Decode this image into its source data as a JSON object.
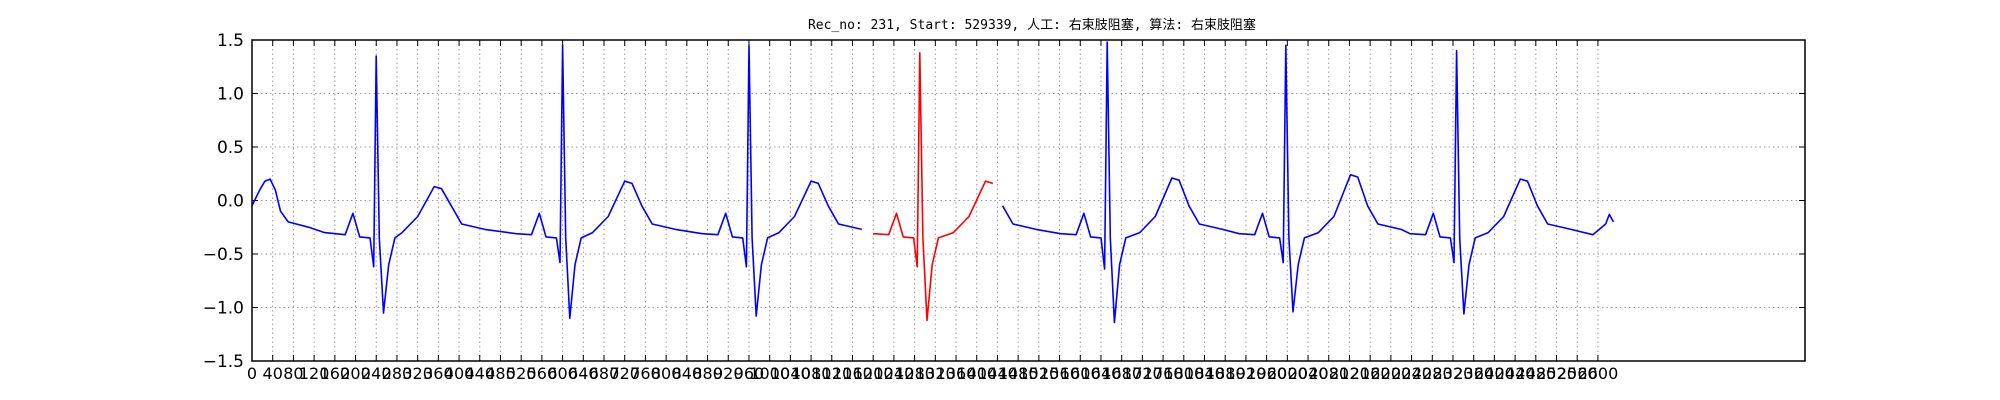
{
  "chart_data": {
    "type": "line",
    "title": "Rec_no: 231, Start: 529339, 人工: 右束肢阻塞, 算法: 右束肢阻塞",
    "xlabel": "",
    "ylabel": "",
    "xlim": [
      0,
      3000
    ],
    "ylim": [
      -1.5,
      1.5
    ],
    "grid": true,
    "legend": "none",
    "colors": {
      "signal": "#0000ff",
      "highlight": "#ff0000",
      "axis": "#000000",
      "grid": "#999999"
    },
    "y_ticks": [
      "−1.5",
      "−1.0",
      "−0.5",
      "0.0",
      "0.5",
      "1.0",
      "1.5"
    ],
    "y_tick_values": [
      -1.5,
      -1.0,
      -0.5,
      0.0,
      0.5,
      1.0,
      1.5
    ],
    "x_ticks": [
      "0",
      "40",
      "80",
      "120",
      "160",
      "200",
      "240",
      "280",
      "320",
      "360",
      "400",
      "440",
      "480",
      "520",
      "560",
      "600",
      "640",
      "680",
      "720",
      "760",
      "800",
      "840",
      "880",
      "920",
      "960",
      "1000",
      "1040",
      "1080",
      "1120",
      "1160",
      "1200",
      "1240",
      "1280",
      "1320",
      "1360",
      "1400",
      "1440",
      "1480",
      "1520",
      "1560",
      "1600",
      "1640",
      "1680",
      "1720",
      "1760",
      "1800",
      "1840",
      "1880",
      "1920",
      "1960",
      "2000",
      "2040",
      "2080",
      "2120",
      "2160",
      "2200",
      "2240",
      "2280",
      "2320",
      "2360",
      "2400",
      "2440",
      "2480",
      "2520",
      "2560",
      "2600"
    ],
    "x_tick_values": [
      0,
      40,
      80,
      120,
      160,
      200,
      240,
      280,
      320,
      360,
      400,
      440,
      480,
      520,
      560,
      600,
      640,
      680,
      720,
      760,
      800,
      840,
      880,
      920,
      960,
      1000,
      1040,
      1080,
      1120,
      1160,
      1200,
      1240,
      1280,
      1320,
      1360,
      1400,
      1440,
      1480,
      1520,
      1560,
      1600,
      1640,
      1680,
      1720,
      1760,
      1800,
      1840,
      1880,
      1920,
      1960,
      2000,
      2040,
      2080,
      2120,
      2160,
      2200,
      2240,
      2280,
      2320,
      2360,
      2400,
      2440,
      2480,
      2520,
      2560,
      2600
    ],
    "beats": [
      {
        "r_x": 240,
        "r_peak": 1.35,
        "q": -0.62,
        "s": -1.05,
        "t_x": 360,
        "t_peak": 0.13
      },
      {
        "r_x": 600,
        "r_peak": 1.45,
        "q": -0.58,
        "s": -1.1,
        "t_x": 728,
        "t_peak": 0.18
      },
      {
        "r_x": 960,
        "r_peak": 1.45,
        "q": -0.62,
        "s": -1.08,
        "t_x": 1088,
        "t_peak": 0.18
      },
      {
        "r_x": 1290,
        "r_peak": 1.38,
        "q": -0.62,
        "s": -1.12,
        "t_x": 1425,
        "t_peak": 0.18
      },
      {
        "r_x": 1652,
        "r_peak": 1.48,
        "q": -0.64,
        "s": -1.14,
        "t_x": 1785,
        "t_peak": 0.21
      },
      {
        "r_x": 1997,
        "r_peak": 1.45,
        "q": -0.58,
        "s": -1.04,
        "t_x": 2130,
        "t_peak": 0.24
      },
      {
        "r_x": 2327,
        "r_peak": 1.4,
        "q": -0.58,
        "s": -1.06,
        "t_x": 2458,
        "t_peak": 0.2
      }
    ],
    "start": {
      "x": 0,
      "y": -0.05
    },
    "end": {
      "x": 2630,
      "y": -0.2
    },
    "baseline": -0.3,
    "highlight_range": [
      1190,
      1440
    ]
  }
}
